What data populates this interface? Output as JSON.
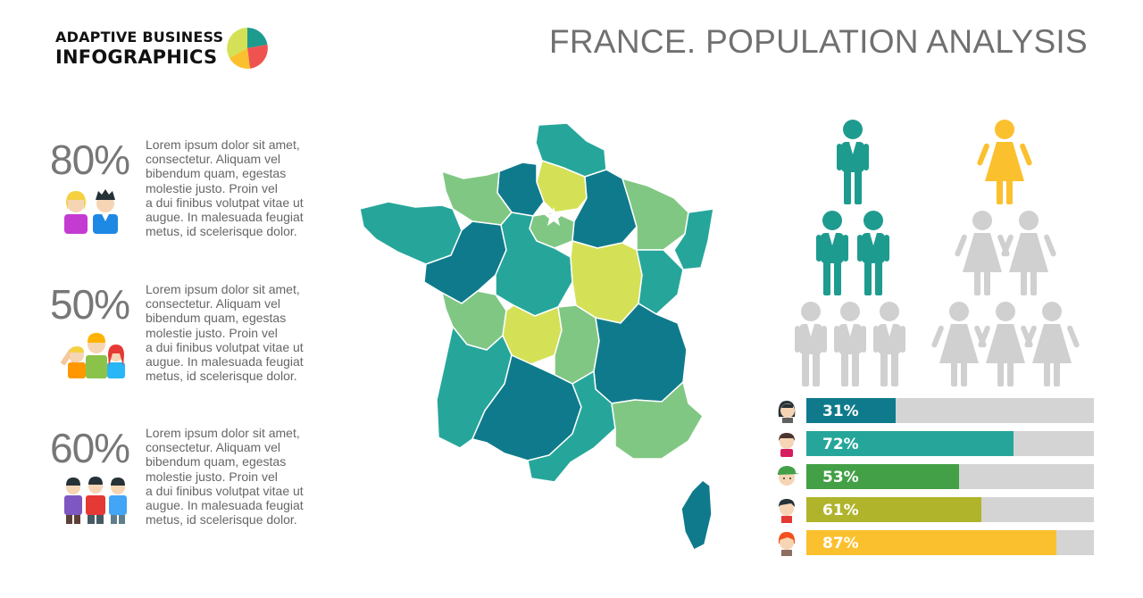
{
  "brand": {
    "line1": "ADAPTIVE BUSINESS",
    "line2": "INFOGRAPHICS",
    "logo_icon": "pie-logo-icon"
  },
  "title": "FRANCE. POPULATION ANALYSIS",
  "stats": [
    {
      "value": "80%",
      "text": [
        "Lorem ipsum dolor sit amet,",
        "consectetur. Aliquam vel",
        "bibendum quam, egestas",
        "molestie justo. Proin vel",
        "a dui finibus volutpat vitae ut",
        "augue. In malesuada feugiat",
        "metus, id scelerisque dolor."
      ],
      "icon": "couple-icon"
    },
    {
      "value": "50%",
      "text": [
        "Lorem ipsum dolor sit amet,",
        "consectetur. Aliquam vel",
        "bibendum quam, egestas",
        "molestie justo. Proin vel",
        "a dui finibus volutpat vitae ut",
        "augue. In malesuada feugiat",
        "metus, id scelerisque dolor."
      ],
      "icon": "group-icon"
    },
    {
      "value": "60%",
      "text": [
        "Lorem ipsum dolor sit amet,",
        "consectetur. Aliquam vel",
        "bibendum quam, egestas",
        "molestie justo. Proin vel",
        "a dui finibus volutpat vitae ut",
        "augue. In malesuada feugiat",
        "metus, id scelerisque dolor."
      ],
      "icon": "men-group-icon"
    }
  ],
  "colors": {
    "dark_teal": "#0f7a8c",
    "teal": "#26a69a",
    "green": "#43a047",
    "light_green": "#81c784",
    "yellow_green": "#d4e157",
    "olive": "#afb42b",
    "orange": "#fbc02d",
    "grey": "#d4d4d4"
  },
  "pictogram": {
    "male": {
      "highlighted": 3,
      "total": 6,
      "color": "#1e9b8f"
    },
    "female": {
      "highlighted": 1,
      "total": 6,
      "color": "#fbc02d"
    }
  },
  "chart_data": {
    "type": "bar",
    "orientation": "horizontal",
    "categories": [
      "woman-avatar",
      "girl-avatar",
      "boy-avatar",
      "man-avatar",
      "redhead-avatar"
    ],
    "values": [
      31,
      72,
      53,
      61,
      87
    ],
    "labels": [
      "31%",
      "72%",
      "53%",
      "61%",
      "87%"
    ],
    "colors": [
      "#0f7a8c",
      "#26a69a",
      "#43a047",
      "#afb42b",
      "#fbc02d"
    ],
    "xlim": [
      0,
      100
    ]
  }
}
